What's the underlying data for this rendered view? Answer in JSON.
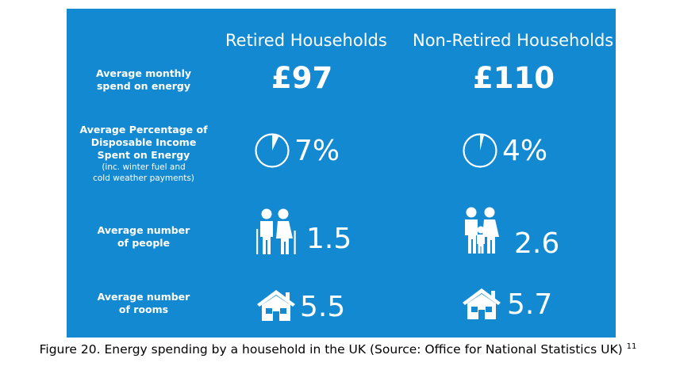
{
  "columns": {
    "retired": "Retired Households",
    "non_retired": "Non-Retired Households"
  },
  "rows": {
    "monthly_spend": {
      "label_line1": "Average monthly",
      "label_line2": "spend on energy",
      "retired": "£97",
      "non_retired": "£110"
    },
    "disposable_pct": {
      "label_line1": "Average Percentage of",
      "label_line2": "Disposable Income",
      "label_line3": "Spent on Energy",
      "note_line1": "(inc. winter fuel and",
      "note_line2": "cold weather payments)",
      "retired": "7%",
      "non_retired": "4%",
      "retired_fraction": 0.07,
      "non_retired_fraction": 0.04
    },
    "people": {
      "label_line1": "Average number",
      "label_line2": "of people",
      "retired": "1.5",
      "non_retired": "2.6"
    },
    "rooms": {
      "label_line1": "Average number",
      "label_line2": "of rooms",
      "retired": "5.5",
      "non_retired": "5.7"
    }
  },
  "icons": {
    "pie": "pie-chart-icon",
    "elderly": "elderly-couple-icon",
    "family": "family-icon",
    "house": "house-icon"
  },
  "caption": {
    "text": "Figure 20. Energy spending by a household in the UK (Source: Office for National Statistics UK)",
    "ref": "11"
  },
  "colors": {
    "background": "#1389d1",
    "text": "#ffffff"
  }
}
